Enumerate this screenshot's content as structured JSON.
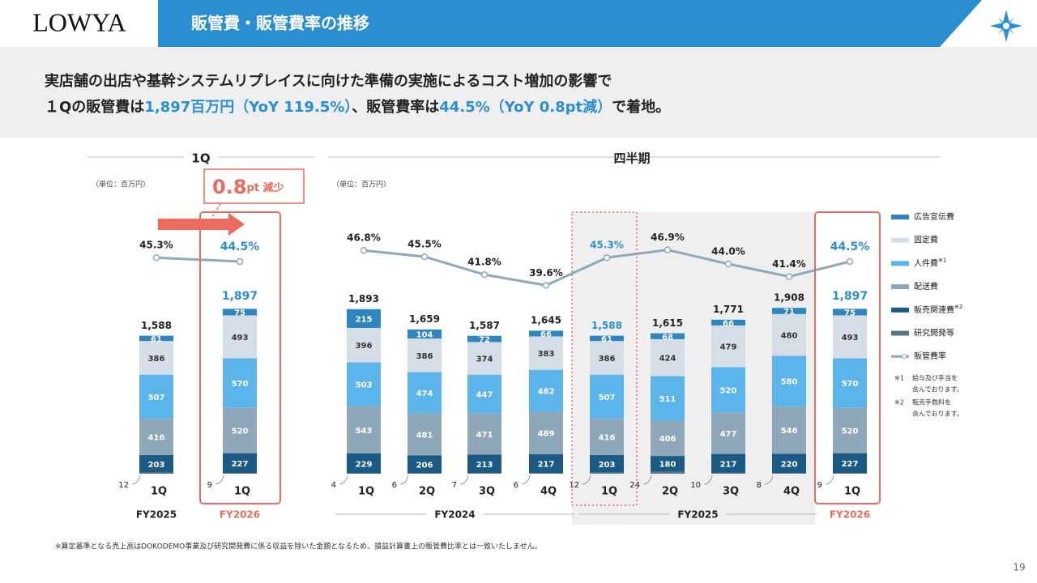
{
  "header": {
    "logo": "LOWYA",
    "title": "販管費・販管費率の推移"
  },
  "headline": {
    "line1": "実店舗の出店や基幹システムリプレイスに向けた準備の実施によるコスト増加の影響で",
    "line2": [
      {
        "text": "１Qの販管費は",
        "color": "#222222"
      },
      {
        "text": "1,897百万円（YoY 119.5%）",
        "color": "#2a8fd0"
      },
      {
        "text": "、販管費率は",
        "color": "#222222"
      },
      {
        "text": "44.5%（YoY 0.8pt減）",
        "color": "#2a8fd0"
      },
      {
        "text": "で着地。",
        "color": "#222222"
      }
    ]
  },
  "annotation": {
    "big": "0.8",
    "small": "pt 減少",
    "color": "#ec6a5e"
  },
  "chart_data": [
    {
      "type": "bar",
      "stacked": true,
      "title": "1Q",
      "subtitle": "（単位：百万円）",
      "categories": [
        "1Q",
        "1Q"
      ],
      "fiscal_years": [
        "FY2025",
        "FY2026"
      ],
      "ylim": [
        0,
        2000
      ],
      "y2lim": [
        35,
        50
      ],
      "series": [
        {
          "name": "研究開発等",
          "color": "#5b7283",
          "values": [
            12,
            9
          ]
        },
        {
          "name": "販売関連費",
          "color": "#1c5a86",
          "values": [
            203,
            227
          ]
        },
        {
          "name": "配送費",
          "color": "#8ea7b9",
          "values": [
            416,
            520
          ]
        },
        {
          "name": "人件費",
          "color": "#5bb5ea",
          "values": [
            507,
            570
          ]
        },
        {
          "name": "固定費",
          "color": "#d5dee6",
          "values": [
            386,
            493
          ]
        },
        {
          "name": "広告宣伝費",
          "color": "#2e86c1",
          "values": [
            61,
            75
          ]
        },
        {
          "name": "販管費率",
          "type": "line",
          "axis": "y2",
          "color": "#8fa9bb",
          "values": [
            45.3,
            44.5
          ],
          "value_labels": [
            "45.3%",
            "44.5%"
          ]
        }
      ],
      "totals": {
        "values": [
          1588,
          1897
        ],
        "value_labels": [
          "1,588",
          "1,897"
        ]
      }
    },
    {
      "type": "bar",
      "stacked": true,
      "title": "四半期",
      "subtitle": "（単位：百万円）",
      "categories": [
        "1Q",
        "2Q",
        "3Q",
        "4Q",
        "1Q",
        "2Q",
        "3Q",
        "4Q",
        "1Q"
      ],
      "fiscal_years": [
        "FY2024",
        "FY2025",
        "FY2026"
      ],
      "ylim": [
        0,
        2000
      ],
      "y2lim": [
        35,
        50
      ],
      "series": [
        {
          "name": "研究開発等",
          "color": "#5b7283",
          "values": [
            4,
            6,
            7,
            6,
            12,
            24,
            10,
            8,
            9
          ]
        },
        {
          "name": "販売関連費",
          "note_ref": "※2",
          "color": "#1c5a86",
          "values": [
            229,
            206,
            213,
            217,
            203,
            180,
            217,
            220,
            227
          ]
        },
        {
          "name": "配送費",
          "color": "#8ea7b9",
          "values": [
            543,
            481,
            471,
            489,
            416,
            406,
            477,
            546,
            520
          ]
        },
        {
          "name": "人件費",
          "note_ref": "※1",
          "color": "#5bb5ea",
          "values": [
            503,
            474,
            447,
            482,
            507,
            511,
            520,
            580,
            570
          ]
        },
        {
          "name": "固定費",
          "color": "#d5dee6",
          "values": [
            396,
            386,
            374,
            383,
            386,
            424,
            479,
            480,
            493
          ]
        },
        {
          "name": "広告宣伝費",
          "color": "#2e86c1",
          "values": [
            215,
            104,
            72,
            66,
            61,
            68,
            66,
            71,
            75
          ]
        },
        {
          "name": "販管費率",
          "type": "line",
          "axis": "y2",
          "color": "#8fa9bb",
          "values": [
            46.8,
            45.5,
            41.8,
            39.6,
            45.3,
            46.9,
            44.0,
            41.4,
            44.5
          ],
          "value_labels": [
            "46.8%",
            "45.5%",
            "41.8%",
            "39.6%",
            "45.3%",
            "46.9%",
            "44.0%",
            "41.4%",
            "44.5%"
          ]
        }
      ],
      "totals": {
        "values": [
          1893,
          1659,
          1587,
          1645,
          1588,
          1615,
          1771,
          1908,
          1897
        ],
        "value_labels": [
          "1,893",
          "1,659",
          "1,587",
          "1,645",
          "1,588",
          "1,615",
          "1,771",
          "1,908",
          "1,897"
        ]
      },
      "notes": [
        {
          "mark": "※1",
          "lines": [
            "給与及び手当を",
            "含んでおります。"
          ]
        },
        {
          "mark": "※2",
          "lines": [
            "販売手数料を",
            "含んでおります。"
          ]
        }
      ]
    }
  ],
  "footnote": "※算定基準となる売上高はDOKODEMO事業及び研究開発費に係る収益を除いた金額となるため、損益計算書上の販管費比率とは一致いたしません。",
  "page_number": "19"
}
